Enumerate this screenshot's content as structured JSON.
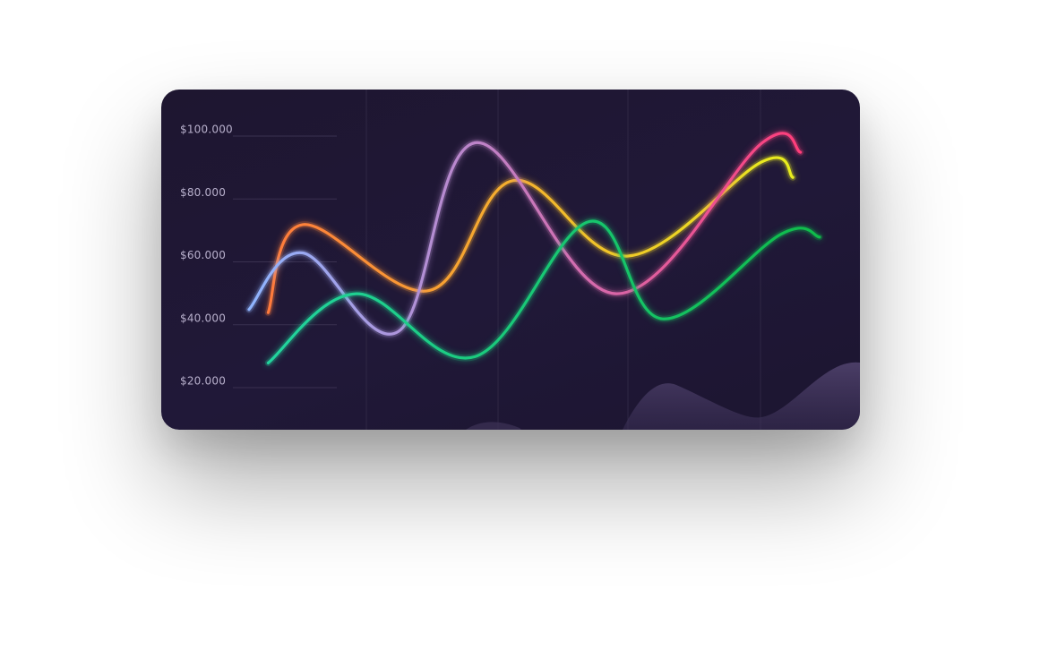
{
  "chart_data": {
    "type": "line",
    "title": "",
    "xlabel": "",
    "ylabel": "",
    "ylim": [
      0,
      110000
    ],
    "y_ticks": [
      {
        "value": 100000,
        "label": "$100.000"
      },
      {
        "value": 80000,
        "label": "$80.000"
      },
      {
        "value": 60000,
        "label": "$60.000"
      },
      {
        "value": 40000,
        "label": "$40.000"
      },
      {
        "value": 20000,
        "label": "$20.000"
      }
    ],
    "grid": "vertical",
    "legend": "none",
    "series": [
      {
        "color_start": "#ff7a3c",
        "color_end": "#e8ee1e",
        "points": [
          [
            0.5,
            43000
          ],
          [
            1.4,
            71000
          ],
          [
            4.7,
            50000
          ],
          [
            6.9,
            85000
          ],
          [
            9.9,
            61000
          ],
          [
            13.4,
            91000
          ],
          [
            14.2,
            86000
          ]
        ]
      },
      {
        "color_start": "#8fb5ff",
        "color_end": "#ff3d7a",
        "points": [
          [
            0.0,
            44000
          ],
          [
            1.4,
            62000
          ],
          [
            3.9,
            37000
          ],
          [
            5.9,
            97000
          ],
          [
            9.6,
            49000
          ],
          [
            13.4,
            97000
          ],
          [
            14.4,
            94000
          ]
        ]
      },
      {
        "color_start": "#22d49e",
        "color_end": "#0fbb4a",
        "points": [
          [
            0.5,
            27000
          ],
          [
            2.8,
            49000
          ],
          [
            5.9,
            29000
          ],
          [
            8.9,
            72000
          ],
          [
            10.8,
            41000
          ],
          [
            13.9,
            68000
          ],
          [
            14.9,
            67000
          ]
        ]
      }
    ]
  },
  "colors": {
    "card_bg": "#1f1735",
    "grid": "#3a3150",
    "tick_label": "#b8b0cc",
    "wave_fill": "#4a3e66"
  }
}
